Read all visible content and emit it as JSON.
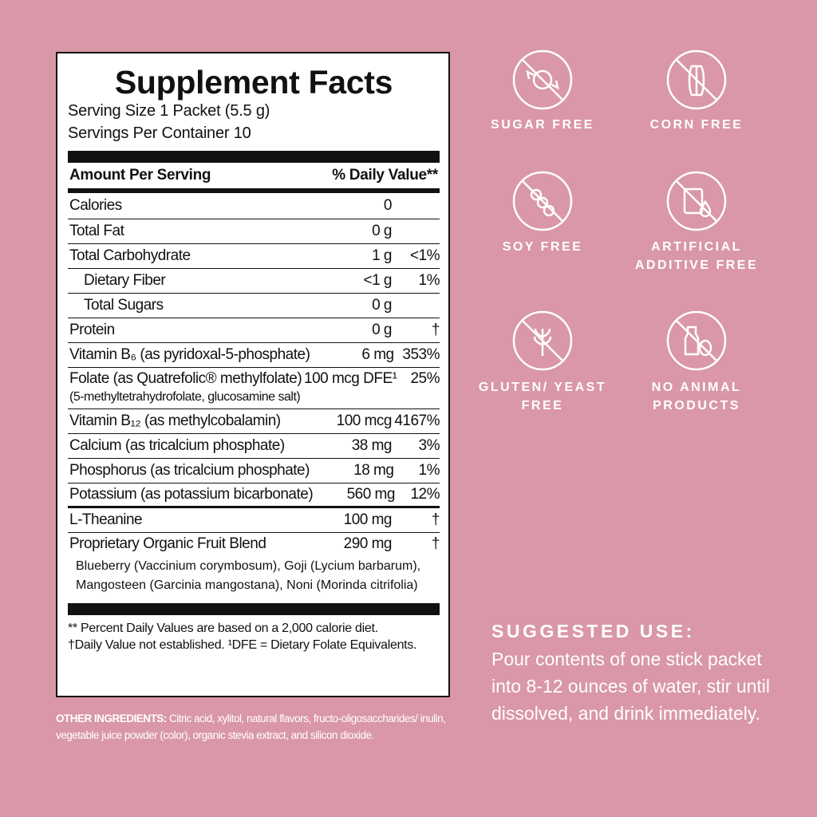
{
  "facts": {
    "title": "Supplement Facts",
    "serving_size": "Serving Size 1 Packet (5.5 g)",
    "servings_per_container": "Servings Per Container 10",
    "amount_header": "Amount Per Serving",
    "dv_header": "% Daily Value**",
    "rows": [
      {
        "name": "Calories",
        "amount": "0",
        "dv": ""
      },
      {
        "name": "Total Fat",
        "amount": "0 g",
        "dv": ""
      },
      {
        "name": "Total Carbohydrate",
        "amount": "1 g",
        "dv": "<1%"
      },
      {
        "name": "Dietary Fiber",
        "amount": "<1 g",
        "dv": "1%"
      },
      {
        "name": "Total Sugars",
        "amount": "0 g",
        "dv": ""
      },
      {
        "name": "Protein",
        "amount": "0 g",
        "dv": "†"
      },
      {
        "name": "Vitamin B₆ (as pyridoxal-5-phosphate)",
        "amount": "6 mg",
        "dv": "353%"
      },
      {
        "name": "Folate (as Quatrefolic® methylfolate)",
        "amount": "100 mcg DFE¹",
        "dv": "25%",
        "sub": "(5-methyltetrahydrofolate, glucosamine salt)"
      },
      {
        "name": "Vitamin B₁₂ (as methylcobalamin)",
        "amount": "100 mcg",
        "dv": "4167%"
      },
      {
        "name": "Calcium (as tricalcium phosphate)",
        "amount": "38 mg",
        "dv": "3%"
      },
      {
        "name": "Phosphorus (as tricalcium phosphate)",
        "amount": "18 mg",
        "dv": "1%"
      },
      {
        "name": "Potassium (as potassium bicarbonate)",
        "amount": "560 mg",
        "dv": "12%"
      },
      {
        "name": "L-Theanine",
        "amount": "100 mg",
        "dv": "†"
      },
      {
        "name": "Proprietary Organic Fruit Blend",
        "amount": "290 mg",
        "dv": "†"
      }
    ],
    "blend_line1": "Blueberry (Vaccinium corymbosum),  Goji (Lycium barbarum),",
    "blend_line2": "Mangosteen (Garcinia mangostana), Noni (Morinda citrifolia)",
    "footnote1": "** Percent Daily Values are based on a 2,000 calorie diet.",
    "footnote2": "†Daily Value not established. ¹DFE = Dietary Folate Equivalents."
  },
  "other_ingredients": {
    "label": "OTHER INGREDIENTS:",
    "text": " Citric acid, xylitol, natural flavors, fructo-oligosaccharides/ inulin, vegetable juice powder (color), organic stevia extract,  and silicon dioxide."
  },
  "badges": [
    {
      "icon": "candy-icon",
      "label": "SUGAR FREE"
    },
    {
      "icon": "corn-icon",
      "label": "CORN FREE"
    },
    {
      "icon": "soybean-icon",
      "label": "SOY FREE"
    },
    {
      "icon": "additive-icon",
      "label": "ARTIFICIAL ADDITIVE FREE"
    },
    {
      "icon": "wheat-icon",
      "label": "GLUTEN/ YEAST FREE"
    },
    {
      "icon": "milk-egg-icon",
      "label": "NO ANIMAL PRODUCTS"
    }
  ],
  "suggested_use": {
    "heading": "SUGGESTED USE:",
    "text": "Pour contents of one stick packet into 8-12 ounces of water, stir until dissolved, and drink immediately."
  },
  "colors": {
    "background": "#d997a8",
    "panel": "#ffffff",
    "ink": "#111111"
  }
}
